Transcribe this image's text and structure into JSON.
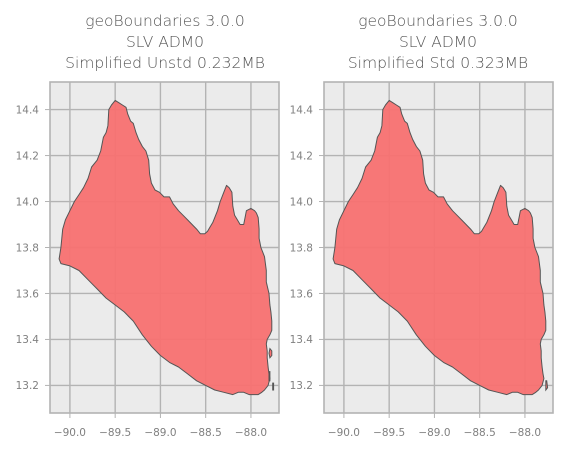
{
  "chart_data": [
    {
      "type": "map",
      "title_lines": [
        "geoBoundaries 3.0.0",
        "SLV ADM0",
        "Simplified Unstd 0.232MB"
      ],
      "xlim": [
        -90.22,
        -87.69
      ],
      "ylim": [
        13.08,
        14.52
      ],
      "x_ticks": [
        -90.0,
        -89.5,
        -89.0,
        -88.5,
        -88.0
      ],
      "x_tick_labels": [
        "−90.0",
        "−89.5",
        "−89.0",
        "−88.5",
        "−88.0"
      ],
      "y_ticks": [
        13.2,
        13.4,
        13.6,
        13.8,
        14.0,
        14.2,
        14.4
      ],
      "y_tick_labels": [
        "13.2",
        "13.4",
        "13.6",
        "13.8",
        "14.0",
        "14.2",
        "14.4"
      ],
      "grid": true,
      "fill_color": "#f87171",
      "edge_color": "#555555",
      "outline": [
        [
          -90.12,
          13.75
        ],
        [
          -90.1,
          13.8
        ],
        [
          -90.08,
          13.88
        ],
        [
          -90.05,
          13.92
        ],
        [
          -90.0,
          13.96
        ],
        [
          -89.95,
          14.0
        ],
        [
          -89.9,
          14.03
        ],
        [
          -89.85,
          14.06
        ],
        [
          -89.8,
          14.1
        ],
        [
          -89.76,
          14.15
        ],
        [
          -89.7,
          14.18
        ],
        [
          -89.66,
          14.22
        ],
        [
          -89.63,
          14.28
        ],
        [
          -89.6,
          14.3
        ],
        [
          -89.58,
          14.33
        ],
        [
          -89.57,
          14.4
        ],
        [
          -89.54,
          14.42
        ],
        [
          -89.5,
          14.44
        ],
        [
          -89.46,
          14.43
        ],
        [
          -89.42,
          14.42
        ],
        [
          -89.38,
          14.41
        ],
        [
          -89.36,
          14.38
        ],
        [
          -89.33,
          14.35
        ],
        [
          -89.3,
          14.34
        ],
        [
          -89.27,
          14.3
        ],
        [
          -89.24,
          14.27
        ],
        [
          -89.2,
          14.24
        ],
        [
          -89.16,
          14.22
        ],
        [
          -89.13,
          14.18
        ],
        [
          -89.12,
          14.12
        ],
        [
          -89.1,
          14.08
        ],
        [
          -89.06,
          14.05
        ],
        [
          -89.01,
          14.04
        ],
        [
          -88.96,
          14.02
        ],
        [
          -88.9,
          14.02
        ],
        [
          -88.86,
          13.99
        ],
        [
          -88.8,
          13.96
        ],
        [
          -88.75,
          13.94
        ],
        [
          -88.7,
          13.92
        ],
        [
          -88.65,
          13.9
        ],
        [
          -88.6,
          13.88
        ],
        [
          -88.56,
          13.86
        ],
        [
          -88.51,
          13.86
        ],
        [
          -88.48,
          13.87
        ],
        [
          -88.45,
          13.89
        ],
        [
          -88.42,
          13.91
        ],
        [
          -88.37,
          13.96
        ],
        [
          -88.34,
          14.0
        ],
        [
          -88.3,
          14.04
        ],
        [
          -88.27,
          14.07
        ],
        [
          -88.24,
          14.06
        ],
        [
          -88.21,
          14.04
        ],
        [
          -88.2,
          13.98
        ],
        [
          -88.18,
          13.94
        ],
        [
          -88.15,
          13.92
        ],
        [
          -88.12,
          13.9
        ],
        [
          -88.08,
          13.9
        ],
        [
          -88.06,
          13.94
        ],
        [
          -88.05,
          13.96
        ],
        [
          -88.0,
          13.97
        ],
        [
          -87.96,
          13.96
        ],
        [
          -87.94,
          13.95
        ],
        [
          -87.92,
          13.93
        ],
        [
          -87.91,
          13.88
        ],
        [
          -87.91,
          13.84
        ],
        [
          -87.89,
          13.8
        ],
        [
          -87.87,
          13.78
        ],
        [
          -87.85,
          13.76
        ],
        [
          -87.84,
          13.73
        ],
        [
          -87.83,
          13.7
        ],
        [
          -87.83,
          13.65
        ],
        [
          -87.8,
          13.6
        ],
        [
          -87.79,
          13.55
        ],
        [
          -87.78,
          13.52
        ],
        [
          -87.77,
          13.48
        ],
        [
          -87.77,
          13.44
        ],
        [
          -87.79,
          13.42
        ],
        [
          -87.82,
          13.4
        ],
        [
          -87.83,
          13.38
        ],
        [
          -87.82,
          13.35
        ],
        [
          -87.82,
          13.32
        ],
        [
          -87.81,
          13.28
        ],
        [
          -87.8,
          13.25
        ],
        [
          -87.79,
          13.23
        ],
        [
          -87.81,
          13.2
        ],
        [
          -87.85,
          13.18
        ],
        [
          -87.88,
          13.17
        ],
        [
          -87.92,
          13.16
        ],
        [
          -87.98,
          13.16
        ],
        [
          -88.02,
          13.16
        ],
        [
          -88.08,
          13.17
        ],
        [
          -88.14,
          13.17
        ],
        [
          -88.2,
          13.16
        ],
        [
          -88.3,
          13.17
        ],
        [
          -88.4,
          13.18
        ],
        [
          -88.5,
          13.2
        ],
        [
          -88.6,
          13.22
        ],
        [
          -88.7,
          13.25
        ],
        [
          -88.8,
          13.28
        ],
        [
          -88.9,
          13.3
        ],
        [
          -89.0,
          13.33
        ],
        [
          -89.1,
          13.37
        ],
        [
          -89.2,
          13.42
        ],
        [
          -89.3,
          13.48
        ],
        [
          -89.4,
          13.52
        ],
        [
          -89.5,
          13.55
        ],
        [
          -89.6,
          13.58
        ],
        [
          -89.7,
          13.62
        ],
        [
          -89.8,
          13.66
        ],
        [
          -89.9,
          13.7
        ],
        [
          -90.0,
          13.72
        ],
        [
          -90.1,
          13.73
        ],
        [
          -90.12,
          13.75
        ]
      ],
      "islands": [
        [
          [
            -87.79,
            13.36
          ],
          [
            -87.77,
            13.35
          ],
          [
            -87.77,
            13.33
          ],
          [
            -87.79,
            13.32
          ],
          [
            -87.8,
            13.34
          ]
        ],
        [
          [
            -87.8,
            13.26
          ],
          [
            -87.79,
            13.26
          ],
          [
            -87.79,
            13.22
          ],
          [
            -87.8,
            13.22
          ]
        ],
        [
          [
            -87.76,
            13.21
          ],
          [
            -87.75,
            13.21
          ],
          [
            -87.75,
            13.18
          ],
          [
            -87.76,
            13.18
          ]
        ]
      ]
    },
    {
      "type": "map",
      "title_lines": [
        "geoBoundaries 3.0.0",
        "SLV ADM0",
        "Simplified Std 0.323MB"
      ],
      "xlim": [
        -90.22,
        -87.69
      ],
      "ylim": [
        13.08,
        14.52
      ],
      "x_ticks": [
        -90.0,
        -89.5,
        -89.0,
        -88.5,
        -88.0
      ],
      "x_tick_labels": [
        "−90.0",
        "−89.5",
        "−89.0",
        "−88.5",
        "−88.0"
      ],
      "y_ticks": [
        13.2,
        13.4,
        13.6,
        13.8,
        14.0,
        14.2,
        14.4
      ],
      "y_tick_labels": [
        "13.2",
        "13.4",
        "13.6",
        "13.8",
        "14.0",
        "14.2",
        "14.4"
      ],
      "grid": true,
      "fill_color": "#f87171",
      "edge_color": "#555555",
      "outline": [
        [
          -90.12,
          13.75
        ],
        [
          -90.1,
          13.8
        ],
        [
          -90.08,
          13.88
        ],
        [
          -90.05,
          13.92
        ],
        [
          -90.0,
          13.96
        ],
        [
          -89.95,
          14.0
        ],
        [
          -89.9,
          14.03
        ],
        [
          -89.85,
          14.06
        ],
        [
          -89.8,
          14.1
        ],
        [
          -89.76,
          14.15
        ],
        [
          -89.7,
          14.18
        ],
        [
          -89.66,
          14.22
        ],
        [
          -89.63,
          14.28
        ],
        [
          -89.6,
          14.3
        ],
        [
          -89.58,
          14.33
        ],
        [
          -89.57,
          14.4
        ],
        [
          -89.54,
          14.42
        ],
        [
          -89.5,
          14.44
        ],
        [
          -89.46,
          14.43
        ],
        [
          -89.42,
          14.42
        ],
        [
          -89.38,
          14.41
        ],
        [
          -89.36,
          14.38
        ],
        [
          -89.33,
          14.35
        ],
        [
          -89.3,
          14.34
        ],
        [
          -89.27,
          14.3
        ],
        [
          -89.24,
          14.27
        ],
        [
          -89.2,
          14.24
        ],
        [
          -89.16,
          14.22
        ],
        [
          -89.13,
          14.18
        ],
        [
          -89.12,
          14.12
        ],
        [
          -89.1,
          14.08
        ],
        [
          -89.06,
          14.05
        ],
        [
          -89.01,
          14.04
        ],
        [
          -88.96,
          14.02
        ],
        [
          -88.9,
          14.02
        ],
        [
          -88.86,
          13.99
        ],
        [
          -88.8,
          13.96
        ],
        [
          -88.75,
          13.94
        ],
        [
          -88.7,
          13.92
        ],
        [
          -88.65,
          13.9
        ],
        [
          -88.6,
          13.88
        ],
        [
          -88.56,
          13.86
        ],
        [
          -88.51,
          13.86
        ],
        [
          -88.48,
          13.87
        ],
        [
          -88.45,
          13.89
        ],
        [
          -88.42,
          13.91
        ],
        [
          -88.37,
          13.96
        ],
        [
          -88.34,
          14.0
        ],
        [
          -88.3,
          14.04
        ],
        [
          -88.27,
          14.07
        ],
        [
          -88.24,
          14.06
        ],
        [
          -88.21,
          14.04
        ],
        [
          -88.2,
          13.98
        ],
        [
          -88.18,
          13.94
        ],
        [
          -88.15,
          13.92
        ],
        [
          -88.12,
          13.9
        ],
        [
          -88.08,
          13.9
        ],
        [
          -88.06,
          13.94
        ],
        [
          -88.05,
          13.96
        ],
        [
          -88.0,
          13.97
        ],
        [
          -87.96,
          13.96
        ],
        [
          -87.94,
          13.95
        ],
        [
          -87.92,
          13.93
        ],
        [
          -87.91,
          13.88
        ],
        [
          -87.91,
          13.84
        ],
        [
          -87.89,
          13.8
        ],
        [
          -87.87,
          13.78
        ],
        [
          -87.85,
          13.76
        ],
        [
          -87.84,
          13.73
        ],
        [
          -87.83,
          13.7
        ],
        [
          -87.83,
          13.65
        ],
        [
          -87.8,
          13.6
        ],
        [
          -87.79,
          13.55
        ],
        [
          -87.78,
          13.52
        ],
        [
          -87.77,
          13.48
        ],
        [
          -87.77,
          13.44
        ],
        [
          -87.79,
          13.42
        ],
        [
          -87.82,
          13.4
        ],
        [
          -87.83,
          13.38
        ],
        [
          -87.82,
          13.35
        ],
        [
          -87.82,
          13.32
        ],
        [
          -87.81,
          13.28
        ],
        [
          -87.8,
          13.25
        ],
        [
          -87.79,
          13.23
        ],
        [
          -87.81,
          13.2
        ],
        [
          -87.85,
          13.18
        ],
        [
          -87.88,
          13.17
        ],
        [
          -87.92,
          13.16
        ],
        [
          -87.98,
          13.16
        ],
        [
          -88.02,
          13.16
        ],
        [
          -88.08,
          13.17
        ],
        [
          -88.14,
          13.17
        ],
        [
          -88.2,
          13.16
        ],
        [
          -88.3,
          13.17
        ],
        [
          -88.4,
          13.18
        ],
        [
          -88.5,
          13.2
        ],
        [
          -88.6,
          13.22
        ],
        [
          -88.7,
          13.25
        ],
        [
          -88.8,
          13.28
        ],
        [
          -88.9,
          13.3
        ],
        [
          -89.0,
          13.33
        ],
        [
          -89.1,
          13.37
        ],
        [
          -89.2,
          13.42
        ],
        [
          -89.3,
          13.48
        ],
        [
          -89.4,
          13.52
        ],
        [
          -89.5,
          13.55
        ],
        [
          -89.6,
          13.58
        ],
        [
          -89.7,
          13.62
        ],
        [
          -89.8,
          13.66
        ],
        [
          -89.9,
          13.7
        ],
        [
          -90.0,
          13.72
        ],
        [
          -90.1,
          13.73
        ],
        [
          -90.12,
          13.75
        ]
      ],
      "islands": [
        [
          [
            -87.77,
            13.22
          ],
          [
            -87.76,
            13.22
          ],
          [
            -87.75,
            13.19
          ],
          [
            -87.77,
            13.18
          ]
        ]
      ]
    }
  ]
}
